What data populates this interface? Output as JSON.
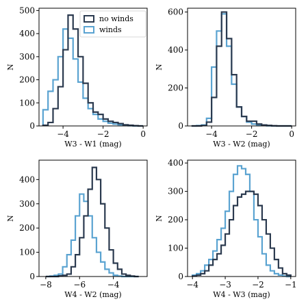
{
  "colors": {
    "no_winds": "#2b3a4f",
    "winds": "#5aa3d1",
    "axis": "#000000"
  },
  "legend": {
    "placement": "top-right (top-left panel)",
    "labels": [
      "no winds",
      "winds"
    ]
  },
  "chart_data": [
    {
      "type": "bar",
      "histogram": true,
      "xlabel": "W3 - W1 (mag)",
      "ylabel": "N",
      "xlim": [
        -5.2,
        0.2
      ],
      "ylim": [
        0,
        510
      ],
      "xticks": [
        -4,
        -2,
        0
      ],
      "yticks": [
        0,
        100,
        200,
        300,
        400,
        500
      ],
      "bin_edges": [
        -5,
        -4.75,
        -4.5,
        -4.25,
        -4,
        -3.75,
        -3.5,
        -3.25,
        -3,
        -2.75,
        -2.5,
        -2.25,
        -2,
        -1.75,
        -1.5,
        -1.25,
        -1,
        -0.75,
        -0.5,
        -0.25,
        0
      ],
      "series": [
        {
          "name": "no winds",
          "values": [
            3,
            15,
            75,
            170,
            330,
            480,
            420,
            300,
            185,
            100,
            60,
            50,
            30,
            20,
            15,
            10,
            5,
            3,
            1,
            0
          ]
        },
        {
          "name": "winds",
          "values": [
            70,
            150,
            200,
            300,
            420,
            380,
            290,
            190,
            120,
            75,
            50,
            30,
            20,
            12,
            8,
            5,
            2,
            1,
            0,
            0
          ]
        }
      ],
      "grid": false
    },
    {
      "type": "bar",
      "histogram": true,
      "xlabel": "W3 - W2 (mag)",
      "ylabel": "N",
      "xlim": [
        -5.2,
        0.2
      ],
      "ylim": [
        0,
        620
      ],
      "xticks": [
        -4,
        -2,
        0
      ],
      "yticks": [
        0,
        200,
        400,
        600
      ],
      "bin_edges": [
        -5,
        -4.75,
        -4.5,
        -4.25,
        -4,
        -3.75,
        -3.5,
        -3.25,
        -3,
        -2.75,
        -2.5,
        -2.25,
        -2,
        -1.75,
        -1.5,
        -1.25,
        -1,
        -0.75,
        -0.5,
        -0.25,
        0
      ],
      "series": [
        {
          "name": "no winds",
          "values": [
            0,
            0,
            2,
            20,
            150,
            420,
            600,
            460,
            270,
            100,
            50,
            25,
            25,
            10,
            5,
            3,
            1,
            0,
            0,
            0
          ]
        },
        {
          "name": "winds",
          "values": [
            0,
            2,
            5,
            40,
            310,
            500,
            590,
            420,
            220,
            100,
            50,
            20,
            10,
            5,
            2,
            1,
            0,
            0,
            0,
            0
          ]
        }
      ],
      "grid": false
    },
    {
      "type": "bar",
      "histogram": true,
      "xlabel": "W4 - W2 (mag)",
      "ylabel": "N",
      "xlim": [
        -8.4,
        -2.0
      ],
      "ylim": [
        0,
        480
      ],
      "xticks": [
        -8,
        -6,
        -4
      ],
      "yticks": [
        0,
        100,
        200,
        300,
        400
      ],
      "bin_edges": [
        -8,
        -7.75,
        -7.5,
        -7.25,
        -7,
        -6.75,
        -6.5,
        -6.25,
        -6,
        -5.75,
        -5.5,
        -5.25,
        -5,
        -4.75,
        -4.5,
        -4.25,
        -4,
        -3.75,
        -3.5,
        -3.25,
        -3,
        -2.75,
        -2.5
      ],
      "series": [
        {
          "name": "no winds",
          "values": [
            0,
            0,
            0,
            3,
            5,
            10,
            40,
            90,
            160,
            250,
            360,
            450,
            400,
            300,
            200,
            110,
            55,
            30,
            10,
            5,
            2,
            0
          ]
        },
        {
          "name": "winds",
          "values": [
            0,
            2,
            5,
            10,
            40,
            90,
            150,
            250,
            340,
            310,
            250,
            160,
            100,
            60,
            30,
            15,
            5,
            2,
            0,
            0,
            0,
            0
          ]
        }
      ],
      "grid": false
    },
    {
      "type": "bar",
      "histogram": true,
      "xlabel": "W4 - W3 (mag)",
      "ylabel": "N",
      "xlim": [
        -4.15,
        -0.85
      ],
      "ylim": [
        0,
        410
      ],
      "xticks": [
        -4,
        -3,
        -2,
        -1
      ],
      "yticks": [
        0,
        100,
        200,
        300,
        400
      ],
      "bin_edges": [
        -4,
        -3.875,
        -3.75,
        -3.625,
        -3.5,
        -3.375,
        -3.25,
        -3.125,
        -3,
        -2.875,
        -2.75,
        -2.625,
        -2.5,
        -2.375,
        -2.25,
        -2.125,
        -2,
        -1.875,
        -1.75,
        -1.625,
        -1.5,
        -1.375,
        -1.25,
        -1.125,
        -1
      ],
      "series": [
        {
          "name": "no winds",
          "values": [
            2,
            5,
            10,
            20,
            40,
            60,
            80,
            110,
            150,
            200,
            250,
            280,
            290,
            300,
            300,
            290,
            250,
            200,
            150,
            100,
            60,
            30,
            10,
            5
          ]
        },
        {
          "name": "winds",
          "values": [
            5,
            10,
            20,
            40,
            60,
            90,
            130,
            170,
            230,
            300,
            360,
            390,
            380,
            360,
            300,
            200,
            140,
            80,
            40,
            20,
            10,
            5,
            2,
            0
          ]
        }
      ],
      "grid": false
    }
  ]
}
